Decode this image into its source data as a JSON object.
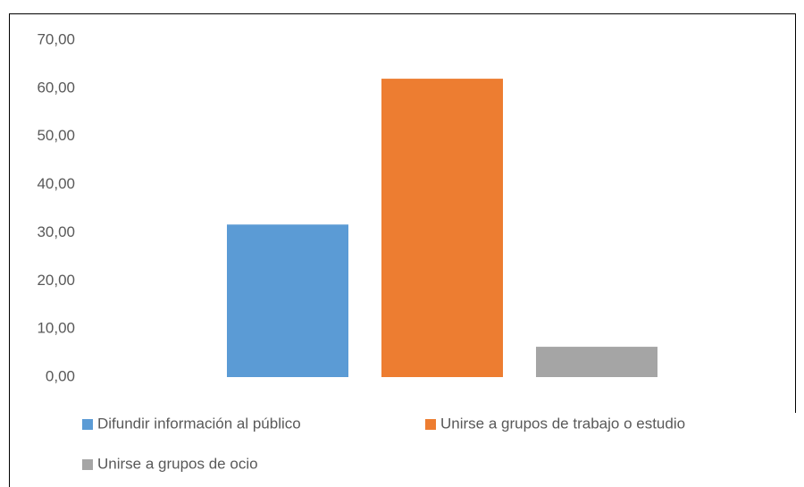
{
  "chart_data": {
    "type": "bar",
    "series": [
      {
        "name": "Difundir información al público",
        "color": "#5b9bd5",
        "values": [
          31.7
        ]
      },
      {
        "name": "Unirse a grupos de trabajo o estudio",
        "color": "#ed7d31",
        "values": [
          62.0
        ]
      },
      {
        "name": "Unirse a grupos de ocio",
        "color": "#a5a5a5",
        "values": [
          6.3
        ]
      }
    ],
    "ylim": [
      0,
      70
    ],
    "yticks": [
      {
        "value": 0,
        "label": "0,00"
      },
      {
        "value": 10,
        "label": "10,00"
      },
      {
        "value": 20,
        "label": "20,00"
      },
      {
        "value": 30,
        "label": "30,00"
      },
      {
        "value": 40,
        "label": "40,00"
      },
      {
        "value": 50,
        "label": "50,00"
      },
      {
        "value": 60,
        "label": "60,00"
      },
      {
        "value": 70,
        "label": "70,00"
      }
    ],
    "grid": false,
    "legend": "bottom"
  }
}
